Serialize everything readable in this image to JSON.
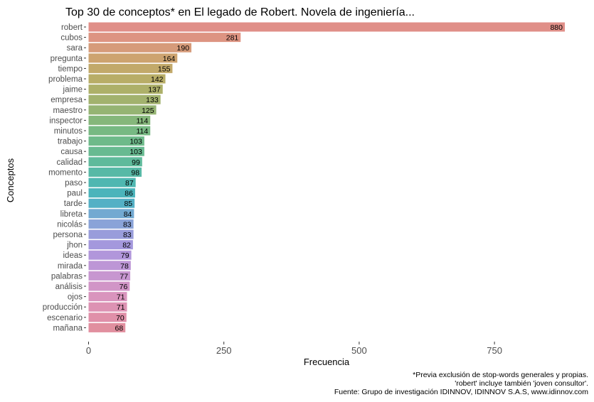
{
  "chart_data": {
    "type": "bar",
    "orientation": "horizontal",
    "title": "Top 30 de conceptos* en El legado de Robert. Novela de ingeniería...",
    "xlabel": "Frecuencia",
    "ylabel": "Conceptos",
    "xlim": [
      0,
      880
    ],
    "xticks": [
      "0",
      "250",
      "500",
      "750"
    ],
    "xtick_values": [
      0,
      250,
      500,
      750
    ],
    "grid": false,
    "categories": [
      "robert",
      "cubos",
      "sara",
      "pregunta",
      "tiempo",
      "problema",
      "jaime",
      "empresa",
      "maestro",
      "inspector",
      "minutos",
      "trabajo",
      "causa",
      "calidad",
      "momento",
      "paso",
      "paul",
      "tarde",
      "libreta",
      "nicolás",
      "persona",
      "jhon",
      "ideas",
      "mirada",
      "palabras",
      "análisis",
      "ojos",
      "producción",
      "escenario",
      "mañana"
    ],
    "values": [
      880,
      281,
      190,
      164,
      155,
      142,
      137,
      133,
      125,
      114,
      114,
      103,
      103,
      99,
      98,
      87,
      86,
      85,
      84,
      83,
      83,
      82,
      79,
      78,
      77,
      76,
      71,
      71,
      70,
      68
    ],
    "colors": [
      "#e08f88",
      "#dd9482",
      "#d69b7a",
      "#cda36f",
      "#c2a96a",
      "#b8ad67",
      "#adb069",
      "#a2b26e",
      "#95b473",
      "#85b77b",
      "#77b983",
      "#6eba8a",
      "#68ba91",
      "#5fba9b",
      "#57b9a6",
      "#4fb7b1",
      "#4bb4bb",
      "#54b0c5",
      "#72a9d1",
      "#8aa3d8",
      "#999ddb",
      "#a498dd",
      "#b196db",
      "#bd96d6",
      "#c796d0",
      "#d195c7",
      "#d994bd",
      "#dd92b3",
      "#e090a9",
      "#e18f9f"
    ],
    "caption_lines": [
      "*Previa exclusión de stop-words generales y propias.",
      "'robert' incluye también 'joven consultor'.",
      "Fuente: Grupo de investigación IDINNOV, IDINNOV S.A.S, www.idinnov.com"
    ]
  }
}
